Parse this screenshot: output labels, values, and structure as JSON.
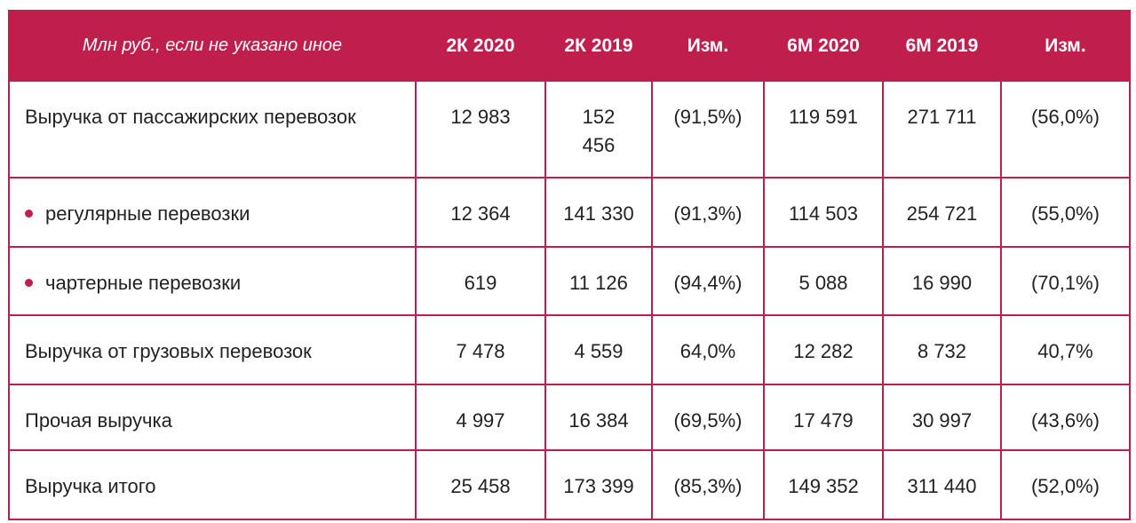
{
  "header": [
    "Млн руб., если не указано иное",
    "2К 2020",
    "2К 2019",
    "Изм.",
    "6М 2020",
    "6М 2019",
    "Изм."
  ],
  "rows": [
    {
      "label": "Выручка от пассажирских перевозок",
      "bullet": false,
      "values": [
        "12 983",
        "152 456",
        "(91,5%)",
        "119 591",
        "271 711",
        "(56,0%)"
      ]
    },
    {
      "label": "регулярные перевозки",
      "bullet": true,
      "values": [
        "12 364",
        "141 330",
        "(91,3%)",
        "114 503",
        "254 721",
        "(55,0%)"
      ]
    },
    {
      "label": "чартерные перевозки",
      "bullet": true,
      "values": [
        "619",
        "11 126",
        "(94,4%)",
        "5 088",
        "16 990",
        "(70,1%)"
      ]
    },
    {
      "label": "Выручка от грузовых перевозок",
      "bullet": false,
      "values": [
        "7 478",
        "4 559",
        "64,0%",
        "12 282",
        "8 732",
        "40,7%"
      ]
    },
    {
      "label": "Прочая выручка",
      "bullet": false,
      "values": [
        "4 997",
        "16 384",
        "(69,5%)",
        "17 479",
        "30 997",
        "(43,6%)"
      ]
    },
    {
      "label": "Выручка итого",
      "bullet": false,
      "values": [
        "25 458",
        "173 399",
        "(85,3%)",
        "149 352",
        "311 440",
        "(52,0%)"
      ]
    }
  ],
  "colors": {
    "accent": "#c01f4d"
  }
}
